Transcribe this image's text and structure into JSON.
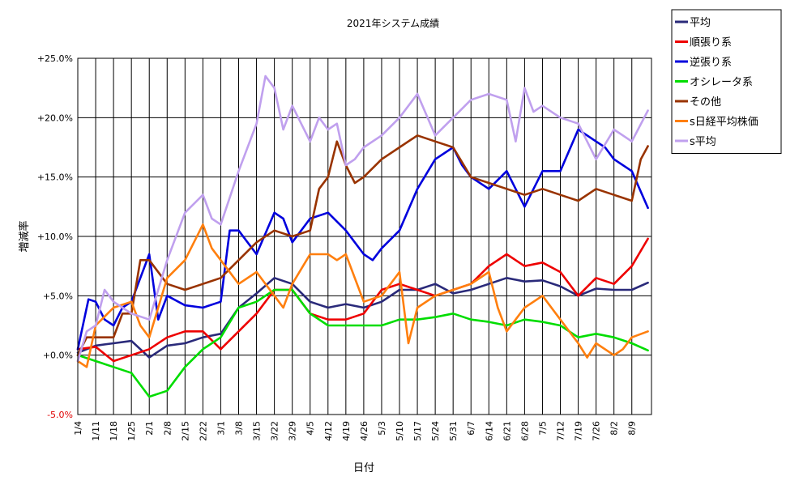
{
  "chart_data": {
    "type": "line",
    "title": "2021年システム成績",
    "xlabel": "日付",
    "ylabel": "増減率",
    "ylim": [
      -5,
      25
    ],
    "y_ticks": [
      {
        "value": 25,
        "label": "+25.0%"
      },
      {
        "value": 20,
        "label": "+20.0%"
      },
      {
        "value": 15,
        "label": "+15.0%"
      },
      {
        "value": 10,
        "label": "+10.0%"
      },
      {
        "value": 5,
        "label": "+5.0%"
      },
      {
        "value": 0,
        "label": "+0.0%"
      },
      {
        "value": -5,
        "label": "-5.0%"
      }
    ],
    "negative_tick_color": "#e00000",
    "grid": true,
    "legend_position": "top-right",
    "x_domain": [
      0,
      32.1
    ],
    "x_ticks": [
      "1/4",
      "1/11",
      "1/18",
      "1/25",
      "2/1",
      "2/8",
      "2/15",
      "2/22",
      "3/1",
      "3/8",
      "3/15",
      "3/22",
      "3/29",
      "4/5",
      "4/12",
      "4/19",
      "4/26",
      "5/3",
      "5/10",
      "5/17",
      "5/24",
      "5/31",
      "6/7",
      "6/14",
      "6/21",
      "6/28",
      "7/5",
      "7/12",
      "7/19",
      "7/26",
      "8/2",
      "8/9"
    ],
    "series": [
      {
        "name": "平均",
        "color": "#2a2a7a",
        "x": [
          0,
          1,
          2,
          3,
          4,
          5,
          6,
          7,
          8,
          9,
          10,
          11,
          12,
          13,
          14,
          15,
          16,
          17,
          18,
          19,
          20,
          21,
          22,
          23,
          24,
          25,
          26,
          27,
          28,
          29,
          30,
          31,
          31.9
        ],
        "y": [
          0.2,
          0.8,
          1.0,
          1.2,
          -0.2,
          0.8,
          1.0,
          1.5,
          1.8,
          4.0,
          5.2,
          6.5,
          6.0,
          4.5,
          4.0,
          4.3,
          4.0,
          4.5,
          5.5,
          5.5,
          6.0,
          5.2,
          5.5,
          6.0,
          6.5,
          6.2,
          6.3,
          5.8,
          5.0,
          5.6,
          5.5,
          5.5,
          6.1
        ]
      },
      {
        "name": "順張り系",
        "color": "#ee0000",
        "x": [
          0,
          1,
          2,
          3,
          4,
          5,
          6,
          7,
          8,
          9,
          10,
          11,
          12,
          13,
          14,
          15,
          16,
          17,
          18,
          19,
          20,
          21,
          22,
          23,
          24,
          25,
          26,
          27,
          28,
          29,
          30,
          31,
          31.9
        ],
        "y": [
          0.5,
          0.7,
          -0.5,
          0.0,
          0.5,
          1.5,
          2.0,
          2.0,
          0.5,
          2.0,
          3.5,
          5.5,
          5.5,
          3.5,
          3.0,
          3.0,
          3.5,
          5.5,
          6.0,
          5.5,
          5.0,
          5.5,
          6.0,
          7.5,
          8.5,
          7.5,
          7.8,
          7.0,
          5.0,
          6.5,
          6.0,
          7.5,
          9.8
        ]
      },
      {
        "name": "逆張り系",
        "color": "#0000dd",
        "x": [
          0,
          0.6,
          1,
          1.5,
          2,
          2.5,
          3,
          3.5,
          4,
          4.5,
          5,
          6,
          7,
          8,
          8.5,
          9,
          10,
          11,
          11.5,
          12,
          13,
          14,
          15,
          16,
          16.5,
          17,
          18,
          19,
          20,
          21,
          21.5,
          22,
          23,
          24,
          25,
          26,
          27,
          28,
          29,
          29.5,
          30,
          31,
          31.9
        ],
        "y": [
          0.5,
          4.7,
          4.5,
          3.0,
          2.5,
          4.0,
          4.5,
          6.5,
          8.5,
          3.0,
          5.0,
          4.2,
          4.0,
          4.5,
          10.5,
          10.5,
          8.5,
          12.0,
          11.5,
          9.5,
          11.5,
          12.0,
          10.5,
          8.5,
          8.0,
          9.0,
          10.5,
          14.0,
          16.5,
          17.5,
          16.0,
          15.0,
          14.0,
          15.5,
          12.5,
          15.5,
          15.5,
          19.0,
          18.0,
          17.5,
          16.5,
          15.5,
          12.4
        ]
      },
      {
        "name": "オシレータ系",
        "color": "#00dd00",
        "x": [
          0,
          1,
          2,
          3,
          4,
          5,
          6,
          7,
          8,
          9,
          10,
          11,
          12,
          13,
          14,
          15,
          16,
          17,
          18,
          19,
          20,
          21,
          22,
          23,
          24,
          25,
          26,
          27,
          28,
          29,
          30,
          31,
          31.9
        ],
        "y": [
          0.0,
          -0.5,
          -1.0,
          -1.5,
          -3.5,
          -3.0,
          -1.0,
          0.5,
          1.5,
          4.0,
          4.5,
          5.5,
          5.5,
          3.5,
          2.5,
          2.5,
          2.5,
          2.5,
          3.0,
          3.0,
          3.2,
          3.5,
          3.0,
          2.8,
          2.5,
          3.0,
          2.8,
          2.5,
          1.5,
          1.8,
          1.5,
          1.0,
          0.4
        ]
      },
      {
        "name": "その他",
        "color": "#993300",
        "x": [
          0,
          0.5,
          1,
          2,
          2.5,
          3,
          3.5,
          4,
          5,
          6,
          7,
          8,
          9,
          10,
          11,
          12,
          13,
          13.5,
          14,
          14.5,
          15,
          15.5,
          16,
          17,
          18,
          19,
          20,
          21,
          22,
          23,
          24,
          25,
          26,
          27,
          28,
          29,
          30,
          31,
          31.5,
          31.9
        ],
        "y": [
          0.0,
          1.5,
          1.5,
          1.5,
          3.5,
          3.5,
          8.0,
          8.0,
          6.0,
          5.5,
          6.0,
          6.5,
          8.0,
          9.5,
          10.5,
          10.0,
          10.5,
          14.0,
          15.0,
          18.0,
          16.0,
          14.5,
          15.0,
          16.5,
          17.5,
          18.5,
          18.0,
          17.5,
          15.0,
          14.5,
          14.0,
          13.5,
          14.0,
          13.5,
          13.0,
          14.0,
          13.5,
          13.0,
          16.5,
          17.6
        ]
      },
      {
        "name": "s日経平均株価",
        "color": "#ff7f0e",
        "x": [
          0,
          0.5,
          1,
          2,
          3,
          3.5,
          4,
          5,
          6,
          7,
          7.5,
          8,
          9,
          10,
          11,
          11.5,
          12,
          13,
          14,
          14.5,
          15,
          16,
          17,
          18,
          18.5,
          19,
          20,
          21,
          22,
          23,
          23.5,
          24,
          25,
          26,
          27,
          28,
          28.5,
          29,
          30,
          30.5,
          31,
          31.9
        ],
        "y": [
          -0.5,
          -1.0,
          2.5,
          4.0,
          4.5,
          2.5,
          1.5,
          6.5,
          8.0,
          11.0,
          9.0,
          8.0,
          6.0,
          7.0,
          5.0,
          4.0,
          6.0,
          8.5,
          8.5,
          8.0,
          8.5,
          4.5,
          5.0,
          7.0,
          1.0,
          4.0,
          5.0,
          5.5,
          6.0,
          7.0,
          4.0,
          2.0,
          4.0,
          5.0,
          3.0,
          1.0,
          -0.2,
          1.0,
          0.0,
          0.5,
          1.5,
          2.0
        ]
      },
      {
        "name": "s平均",
        "color": "#c0a0ee",
        "x": [
          0,
          0.5,
          1,
          1.5,
          2,
          2.5,
          3,
          4,
          5,
          6,
          7,
          7.5,
          8,
          9,
          10,
          10.5,
          11,
          11.5,
          12,
          13,
          13.5,
          14,
          14.5,
          15,
          15.5,
          16,
          17,
          18,
          19,
          20,
          21,
          22,
          23,
          24,
          24.5,
          25,
          25.5,
          26,
          27,
          28,
          29,
          30,
          30.5,
          31,
          31.9
        ],
        "y": [
          -0.5,
          2.0,
          2.5,
          5.5,
          4.5,
          4.0,
          3.5,
          3.0,
          8.0,
          12.0,
          13.5,
          11.5,
          11.0,
          15.5,
          19.5,
          23.5,
          22.5,
          19.0,
          21.0,
          18.0,
          20.0,
          19.0,
          19.5,
          16.0,
          16.5,
          17.5,
          18.5,
          20.0,
          22.0,
          18.5,
          20.0,
          21.5,
          22.0,
          21.5,
          18.0,
          22.5,
          20.5,
          21.0,
          20.0,
          19.5,
          16.5,
          19.0,
          18.5,
          18.0,
          20.6
        ]
      }
    ]
  }
}
